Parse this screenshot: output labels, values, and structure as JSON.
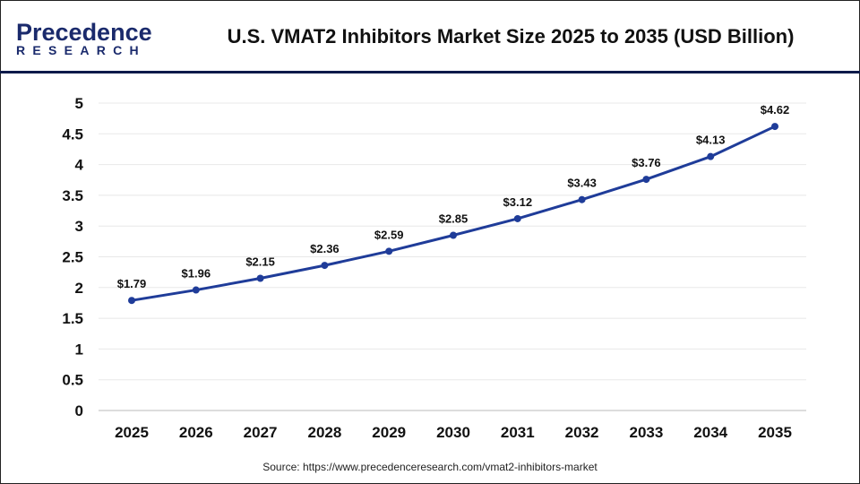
{
  "header": {
    "logo_line1": "Precedence",
    "logo_line2": "RESEARCH",
    "title": "U.S. VMAT2 Inhibitors Market Size 2025 to 2035 (USD Billion)"
  },
  "source": "Source: https://www.precedenceresearch.com/vmat2-inhibitors-market",
  "colors": {
    "line": "#1f3c99",
    "header_rule": "#0d1a4a",
    "grid": "#e8e8e8"
  },
  "chart_data": {
    "type": "line",
    "title": "U.S. VMAT2 Inhibitors Market Size 2025 to 2035 (USD Billion)",
    "categories": [
      "2025",
      "2026",
      "2027",
      "2028",
      "2029",
      "2030",
      "2031",
      "2032",
      "2033",
      "2034",
      "2035"
    ],
    "series": [
      {
        "values": [
          1.79,
          1.96,
          2.15,
          2.36,
          2.59,
          2.85,
          3.12,
          3.43,
          3.76,
          4.13,
          4.62
        ]
      }
    ],
    "data_labels": [
      "$1.79",
      "$1.96",
      "$2.15",
      "$2.36",
      "$2.59",
      "$2.85",
      "$3.12",
      "$3.43",
      "$3.76",
      "$4.13",
      "$4.62"
    ],
    "yticks": [
      "0",
      "0.5",
      "1",
      "1.5",
      "2",
      "2.5",
      "3",
      "3.5",
      "4",
      "4.5",
      "5"
    ],
    "ylim": [
      0,
      5
    ],
    "grid": true,
    "xlabel": "",
    "ylabel": ""
  }
}
